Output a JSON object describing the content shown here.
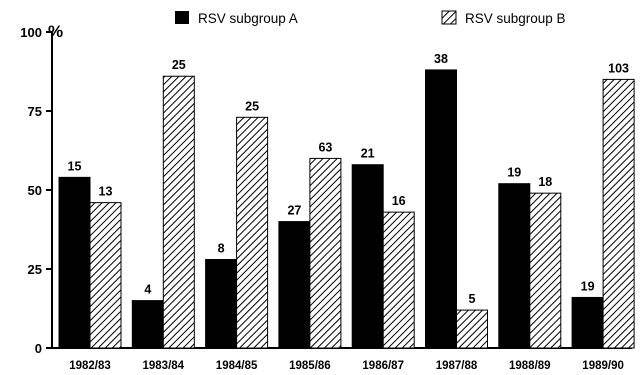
{
  "chart_data": {
    "type": "bar",
    "title": "",
    "xlabel": "",
    "ylabel": "%",
    "ylim": [
      0,
      100
    ],
    "yticks": [
      0,
      25,
      50,
      75,
      100
    ],
    "grid": false,
    "legend": "top",
    "categories": [
      "1982/83",
      "1983/84",
      "1984/85",
      "1985/86",
      "1986/87",
      "1987/88",
      "1988/89",
      "1989/90"
    ],
    "series": [
      {
        "name": "RSV subgroup A",
        "pattern": "solid",
        "color": "#000000",
        "values": [
          54,
          15,
          28,
          40,
          58,
          88,
          52,
          16
        ],
        "labels": [
          "15",
          "4",
          "8",
          "27",
          "21",
          "38",
          "19",
          "19"
        ]
      },
      {
        "name": "RSV subgroup B",
        "pattern": "hatched",
        "color": "#000000",
        "values": [
          46,
          86,
          73,
          60,
          43,
          12,
          49,
          85
        ],
        "labels": [
          "13",
          "25",
          "25",
          "63",
          "16",
          "5",
          "18",
          "103"
        ]
      }
    ]
  }
}
